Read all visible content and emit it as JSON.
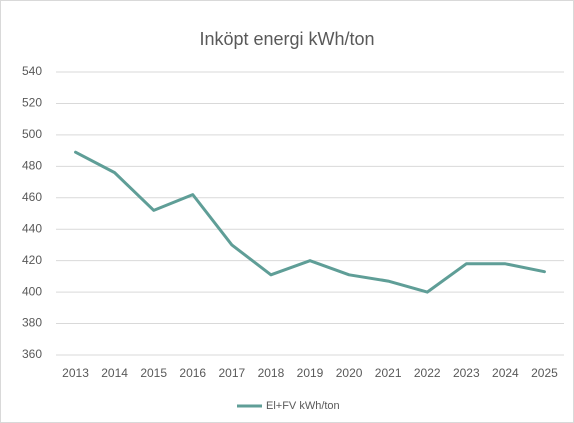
{
  "chart_data": {
    "type": "line",
    "title": "Inköpt energi kWh/ton",
    "categories": [
      "2013",
      "2014",
      "2015",
      "2016",
      "2017",
      "2018",
      "2019",
      "2020",
      "2021",
      "2022",
      "2023",
      "2024",
      "2025"
    ],
    "series": [
      {
        "name": "El+FV kWh/ton",
        "color": "#5f9e97",
        "values": [
          489,
          476,
          452,
          462,
          430,
          411,
          420,
          411,
          407,
          400,
          418,
          418,
          413
        ]
      }
    ],
    "ylim": [
      360,
      540
    ],
    "yticks": [
      360,
      380,
      400,
      420,
      440,
      460,
      480,
      500,
      520,
      540
    ],
    "grid": true,
    "legend": "bottom"
  }
}
